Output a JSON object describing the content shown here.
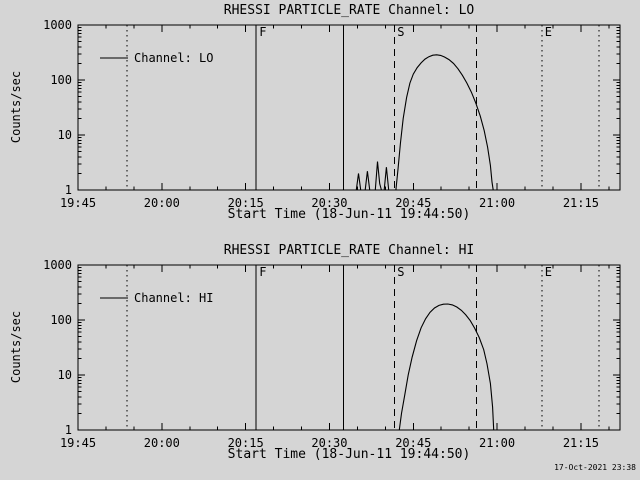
{
  "page": {
    "background": "#d5d5d5",
    "foreground": "#000000",
    "timestamp": "17-Oct-2021 23:38"
  },
  "chart_data": [
    {
      "type": "line",
      "title": "RHESSI PARTICLE_RATE Channel: LO",
      "xlabel": "Start Time (18-Jun-11 19:44:50)",
      "ylabel": "Counts/sec",
      "legend": [
        "Channel: LO"
      ],
      "x_axis": {
        "unit": "minutes after 19:45",
        "lim": [
          0,
          97
        ],
        "minor_step": 5,
        "ticks": [
          {
            "t": 0,
            "label": "19:45"
          },
          {
            "t": 15,
            "label": "20:00"
          },
          {
            "t": 30,
            "label": "20:15"
          },
          {
            "t": 45,
            "label": "20:30"
          },
          {
            "t": 60,
            "label": "20:45"
          },
          {
            "t": 75,
            "label": "21:00"
          },
          {
            "t": 90,
            "label": "21:15"
          }
        ]
      },
      "y_axis": {
        "scale": "log",
        "lim": [
          1,
          1000
        ],
        "ticks": [
          {
            "v": 1,
            "label": "1"
          },
          {
            "v": 10,
            "label": "10"
          },
          {
            "v": 100,
            "label": "100"
          },
          {
            "v": 1000,
            "label": "1000"
          }
        ]
      },
      "event_lines": [
        {
          "t": 8.8,
          "style": "dotted",
          "label": ""
        },
        {
          "t": 31.9,
          "style": "solid",
          "label": "F"
        },
        {
          "t": 47.5,
          "style": "solid",
          "label": ""
        },
        {
          "t": 56.6,
          "style": "dashed",
          "label": "S"
        },
        {
          "t": 71.3,
          "style": "dashed",
          "label": ""
        },
        {
          "t": 83.0,
          "style": "dotted",
          "label": "E"
        },
        {
          "t": 93.2,
          "style": "dotted",
          "label": ""
        }
      ],
      "series": [
        {
          "name": "Channel: LO",
          "points": [
            [
              0,
              1
            ],
            [
              49.8,
              1
            ],
            [
              50.2,
              2.0
            ],
            [
              50.6,
              1
            ],
            [
              51.4,
              1
            ],
            [
              51.8,
              2.2
            ],
            [
              52.2,
              1
            ],
            [
              53.2,
              1
            ],
            [
              53.6,
              3.3
            ],
            [
              54.0,
              1.3
            ],
            [
              54.3,
              1
            ],
            [
              54.8,
              1
            ],
            [
              55.2,
              2.6
            ],
            [
              55.6,
              1
            ],
            [
              56.9,
              1
            ],
            [
              57.3,
              2.6
            ],
            [
              57.7,
              7
            ],
            [
              58.2,
              20
            ],
            [
              58.8,
              48
            ],
            [
              59.4,
              88
            ],
            [
              60.0,
              128
            ],
            [
              60.7,
              168
            ],
            [
              61.4,
              205
            ],
            [
              62.1,
              240
            ],
            [
              62.8,
              265
            ],
            [
              63.5,
              282
            ],
            [
              64.2,
              287
            ],
            [
              64.9,
              280
            ],
            [
              65.6,
              262
            ],
            [
              66.4,
              235
            ],
            [
              67.2,
              200
            ],
            [
              68.0,
              160
            ],
            [
              68.8,
              122
            ],
            [
              69.6,
              88
            ],
            [
              70.4,
              60
            ],
            [
              71.2,
              38
            ],
            [
              72.0,
              22
            ],
            [
              72.7,
              12
            ],
            [
              73.3,
              6
            ],
            [
              73.8,
              2.8
            ],
            [
              74.1,
              1.4
            ],
            [
              74.3,
              1
            ],
            [
              97,
              1
            ]
          ]
        }
      ]
    },
    {
      "type": "line",
      "title": "RHESSI PARTICLE_RATE Channel: HI",
      "xlabel": "Start Time (18-Jun-11 19:44:50)",
      "ylabel": "Counts/sec",
      "legend": [
        "Channel: HI"
      ],
      "x_axis": {
        "unit": "minutes after 19:45",
        "lim": [
          0,
          97
        ],
        "minor_step": 5,
        "ticks": [
          {
            "t": 0,
            "label": "19:45"
          },
          {
            "t": 15,
            "label": "20:00"
          },
          {
            "t": 30,
            "label": "20:15"
          },
          {
            "t": 45,
            "label": "20:30"
          },
          {
            "t": 60,
            "label": "20:45"
          },
          {
            "t": 75,
            "label": "21:00"
          },
          {
            "t": 90,
            "label": "21:15"
          }
        ]
      },
      "y_axis": {
        "scale": "log",
        "lim": [
          1,
          1000
        ],
        "ticks": [
          {
            "v": 1,
            "label": "1"
          },
          {
            "v": 10,
            "label": "10"
          },
          {
            "v": 100,
            "label": "100"
          },
          {
            "v": 1000,
            "label": "1000"
          }
        ]
      },
      "event_lines": [
        {
          "t": 8.8,
          "style": "dotted",
          "label": ""
        },
        {
          "t": 31.9,
          "style": "solid",
          "label": "F"
        },
        {
          "t": 47.5,
          "style": "solid",
          "label": ""
        },
        {
          "t": 56.6,
          "style": "dashed",
          "label": "S"
        },
        {
          "t": 71.3,
          "style": "dashed",
          "label": ""
        },
        {
          "t": 83.0,
          "style": "dotted",
          "label": "E"
        },
        {
          "t": 93.2,
          "style": "dotted",
          "label": ""
        }
      ],
      "series": [
        {
          "name": "Channel: HI",
          "points": [
            [
              0,
              1
            ],
            [
              57.5,
              1
            ],
            [
              57.9,
              2.0
            ],
            [
              58.5,
              4.5
            ],
            [
              59.1,
              10
            ],
            [
              59.8,
              21
            ],
            [
              60.6,
              42
            ],
            [
              61.4,
              72
            ],
            [
              62.2,
              105
            ],
            [
              63.0,
              138
            ],
            [
              63.8,
              165
            ],
            [
              64.6,
              184
            ],
            [
              65.4,
              194
            ],
            [
              66.2,
              195
            ],
            [
              67.0,
              188
            ],
            [
              67.8,
              172
            ],
            [
              68.6,
              150
            ],
            [
              69.4,
              124
            ],
            [
              70.2,
              97
            ],
            [
              71.0,
              71
            ],
            [
              71.8,
              48
            ],
            [
              72.6,
              29
            ],
            [
              73.2,
              16
            ],
            [
              73.8,
              7
            ],
            [
              74.2,
              2.6
            ],
            [
              74.4,
              1
            ],
            [
              97,
              1
            ]
          ]
        }
      ]
    }
  ]
}
